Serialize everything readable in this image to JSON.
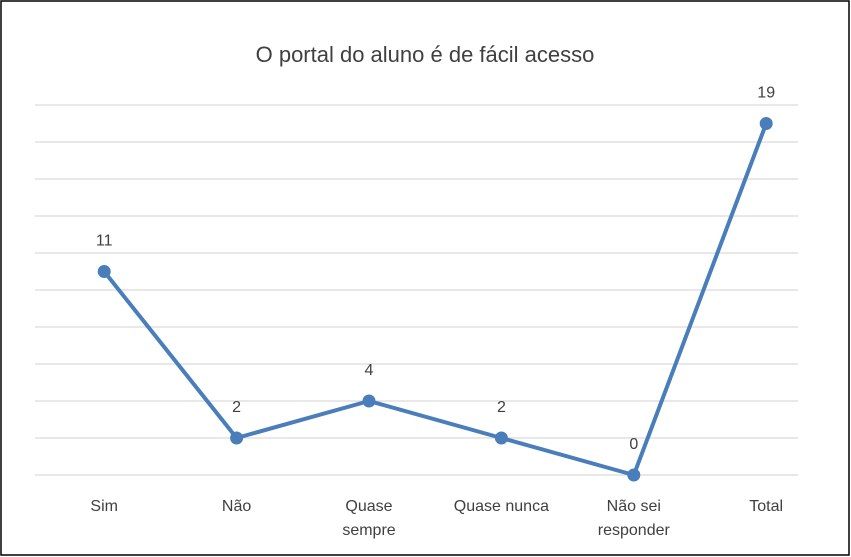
{
  "chart_data": {
    "type": "line",
    "title": "O portal do aluno é de fácil acesso",
    "categories": [
      "Sim",
      "Não",
      "Quase sempre",
      "Quase nunca",
      "Não sei responder",
      "Total"
    ],
    "values": [
      11,
      2,
      4,
      2,
      0,
      19
    ],
    "color": "#4a7ebb",
    "ylim": [
      0,
      20
    ],
    "yticks": [
      0,
      2,
      4,
      6,
      8,
      10,
      12,
      14,
      16,
      18,
      20
    ],
    "grid": true
  }
}
